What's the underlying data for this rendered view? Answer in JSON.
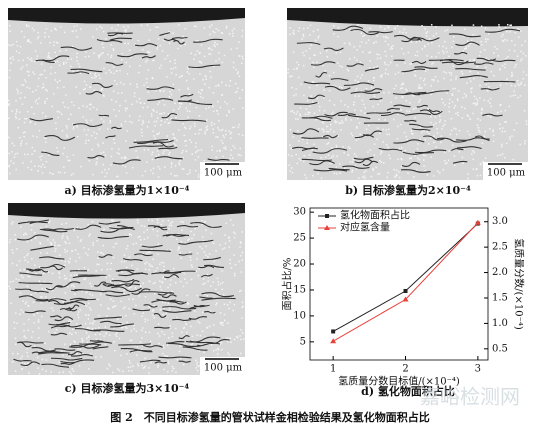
{
  "panels": [
    {
      "caption": "a) 目标渗氢量为1×10⁻⁴",
      "scale_bar": "100 μm"
    },
    {
      "caption": "b) 目标渗氢量为2×10⁻⁴",
      "scale_bar": "100 μm"
    },
    {
      "caption": "c) 目标渗氢量为3×10⁻⁴",
      "scale_bar": "100 μm"
    }
  ],
  "chart_caption": "d) 氢化物面积占比",
  "caption": "图 2　不同目标渗氢量的管状试样金相检验结果及氢化物面积占比",
  "watermark": "嘉峪检测网",
  "chart_data": {
    "type": "line",
    "x_label": "氢质量分数目标值/(×10⁻⁴)",
    "y_label": "面积占比/%",
    "y2_label": "氢质量分数/(×10⁻⁴)",
    "x": [
      1,
      2,
      3
    ],
    "xlim": [
      0.68,
      3.14
    ],
    "xticks": [
      1,
      2,
      3
    ],
    "ylim": [
      1.5,
      30.8
    ],
    "yticks": [
      5,
      10,
      15,
      20,
      25,
      30
    ],
    "y2lim": [
      0.28,
      3.27
    ],
    "y2ticks": [
      {
        "value": 0.5,
        "label": "0.5"
      },
      {
        "value": 1,
        "label": "1.0"
      },
      {
        "value": 1.5,
        "label": "1.5"
      },
      {
        "value": 2,
        "label": "2.0"
      },
      {
        "value": 2.5,
        "label": "2.5"
      },
      {
        "value": 3,
        "label": "3.0"
      }
    ],
    "legend": "upper-left",
    "series": [
      {
        "name": "氢化物面积占比",
        "color": "#222222",
        "marker": "square",
        "values": [
          7,
          14.8,
          27.8
        ]
      },
      {
        "name": "对应氢含量",
        "color": "#e8413a",
        "marker": "triangle",
        "axis": "y2",
        "values": [
          0.65,
          1.47,
          2.98
        ]
      }
    ]
  }
}
